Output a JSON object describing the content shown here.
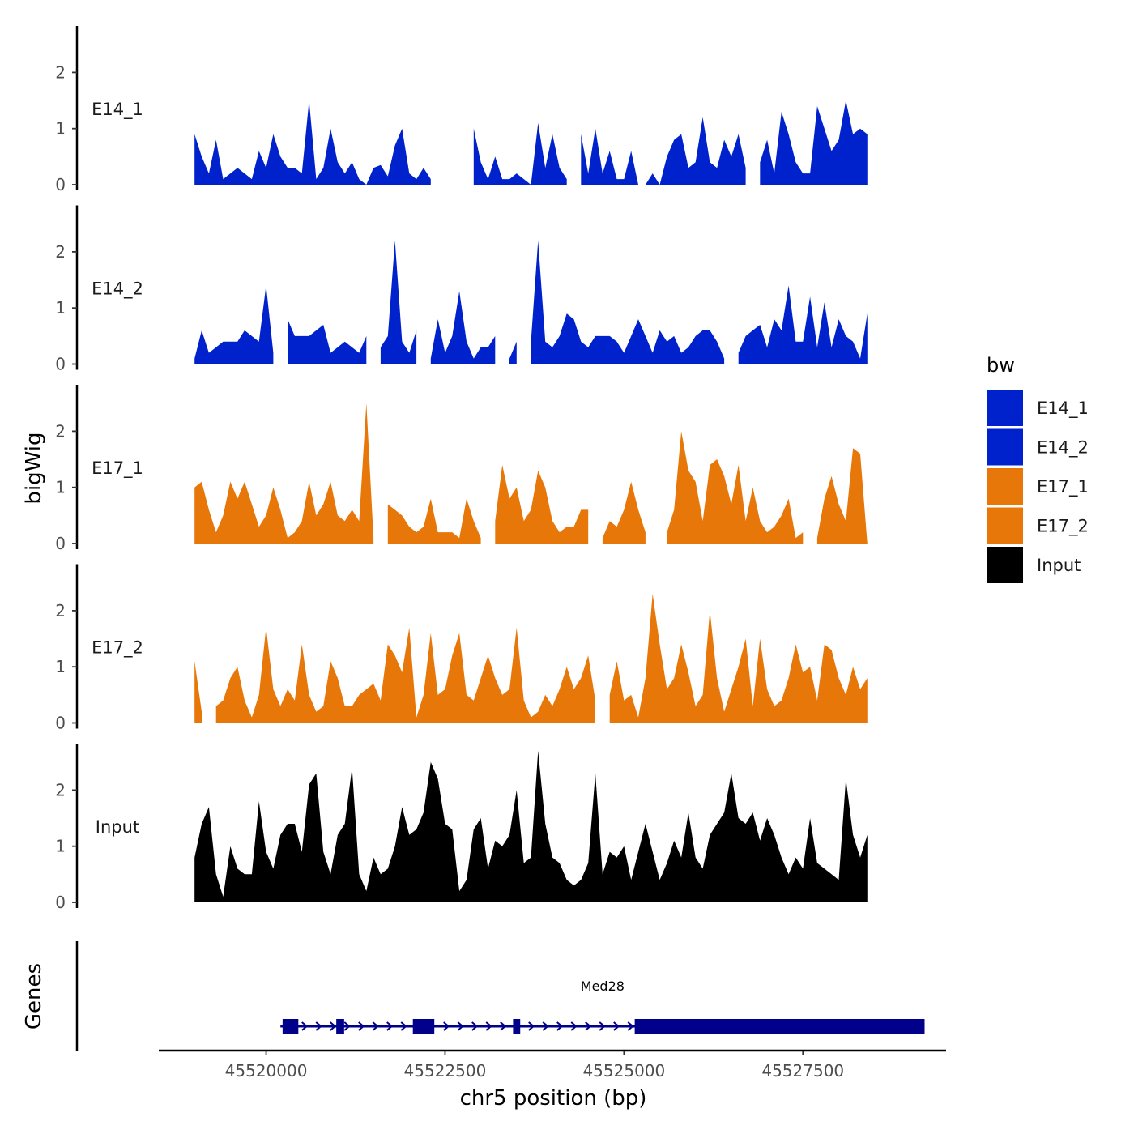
{
  "chart_data": {
    "type": "area",
    "title": "",
    "xlabel": "chr5 position (bp)",
    "ylabel": "bigWig",
    "genes_label": "Genes",
    "xlim": [
      45518500,
      45529500
    ],
    "ylim": [
      0,
      2.8
    ],
    "x_ticks": [
      45520000,
      45522500,
      45525000,
      45527500
    ],
    "x_tick_labels": [
      "45520000",
      "45522500",
      "45525000",
      "45527500"
    ],
    "y_ticks": [
      0,
      1,
      2
    ],
    "y_tick_labels": [
      "0",
      "1",
      "2"
    ],
    "legend": {
      "title": "bw",
      "position": "right",
      "entries": [
        {
          "label": "E14_1",
          "color": "#0022CC"
        },
        {
          "label": "E14_2",
          "color": "#0022CC"
        },
        {
          "label": "E17_1",
          "color": "#E8770A"
        },
        {
          "label": "E17_2",
          "color": "#E8770A"
        },
        {
          "label": "Input",
          "color": "#000000"
        }
      ]
    },
    "x_start": 45519000,
    "x_step": 100,
    "series": [
      {
        "name": "E14_1",
        "color": "#0022CC",
        "values": [
          0.9,
          0.5,
          0.2,
          0.8,
          0.1,
          0.2,
          0.3,
          0.2,
          0.1,
          0.6,
          0.3,
          0.9,
          0.5,
          0.3,
          0.3,
          0.2,
          1.5,
          0.1,
          0.3,
          1.0,
          0.4,
          0.2,
          0.4,
          0.1,
          0.0,
          0.3,
          0.35,
          0.15,
          0.7,
          1.0,
          0.2,
          0.1,
          0.3,
          0.1,
          null,
          null,
          0.4,
          null,
          null,
          1.0,
          0.4,
          0.1,
          0.5,
          0.1,
          0.1,
          0.2,
          0.1,
          0.0,
          1.1,
          0.3,
          0.9,
          0.3,
          0.1,
          null,
          0.9,
          0.2,
          1.0,
          0.2,
          0.6,
          0.1,
          0.1,
          0.6,
          0.0,
          0.0,
          0.2,
          0.0,
          0.5,
          0.8,
          0.9,
          0.3,
          0.4,
          1.2,
          0.4,
          0.3,
          0.8,
          0.5,
          0.9,
          0.3,
          null,
          0.4,
          0.8,
          0.2,
          1.3,
          0.9,
          0.4,
          0.2,
          0.2,
          1.4,
          1.0,
          0.6,
          0.8,
          1.5,
          0.9,
          1.0,
          0.9
        ]
      },
      {
        "name": "E14_2",
        "color": "#0022CC",
        "values": [
          0.1,
          0.6,
          0.2,
          0.3,
          0.4,
          0.4,
          0.4,
          0.6,
          0.5,
          0.4,
          1.4,
          0.2,
          null,
          0.8,
          0.5,
          0.5,
          0.5,
          0.6,
          0.7,
          0.2,
          0.3,
          0.4,
          0.3,
          0.2,
          0.5,
          null,
          0.3,
          0.5,
          2.2,
          0.4,
          0.2,
          0.6,
          null,
          0.1,
          0.8,
          0.2,
          0.5,
          1.3,
          0.4,
          0.1,
          0.3,
          0.3,
          0.5,
          null,
          0.1,
          0.4,
          null,
          0.4,
          2.2,
          0.4,
          0.3,
          0.5,
          0.9,
          0.8,
          0.4,
          0.3,
          0.5,
          0.5,
          0.5,
          0.4,
          0.2,
          0.5,
          0.8,
          0.5,
          0.2,
          0.6,
          0.4,
          0.5,
          0.2,
          0.3,
          0.5,
          0.6,
          0.6,
          0.4,
          0.1,
          null,
          0.2,
          0.5,
          0.6,
          0.7,
          0.3,
          0.8,
          0.6,
          1.4,
          0.4,
          0.4,
          1.2,
          0.3,
          1.1,
          0.3,
          0.8,
          0.5,
          0.4,
          0.1,
          0.9
        ]
      },
      {
        "name": "E17_1",
        "color": "#E8770A",
        "values": [
          1.0,
          1.1,
          0.6,
          0.2,
          0.5,
          1.1,
          0.8,
          1.1,
          0.7,
          0.3,
          0.5,
          1.0,
          0.6,
          0.1,
          0.2,
          0.4,
          1.1,
          0.5,
          0.7,
          1.1,
          0.5,
          0.4,
          0.6,
          0.4,
          2.5,
          0.1,
          null,
          0.7,
          0.6,
          0.5,
          0.3,
          0.2,
          0.3,
          0.8,
          0.2,
          0.2,
          0.2,
          0.1,
          0.8,
          0.4,
          0.1,
          null,
          0.4,
          1.4,
          0.8,
          1.0,
          0.4,
          0.6,
          1.3,
          1.0,
          0.4,
          0.2,
          0.3,
          0.3,
          0.6,
          0.6,
          null,
          0.1,
          0.4,
          0.3,
          0.6,
          1.1,
          0.6,
          0.2,
          null,
          null,
          0.2,
          0.6,
          2.0,
          1.3,
          1.1,
          0.4,
          1.4,
          1.5,
          1.2,
          0.7,
          1.4,
          0.4,
          1.0,
          0.4,
          0.2,
          0.3,
          0.5,
          0.8,
          0.1,
          0.2,
          null,
          0.1,
          0.8,
          1.2,
          0.7,
          0.4,
          1.7,
          1.6,
          0.0
        ]
      },
      {
        "name": "E17_2",
        "color": "#E8770A",
        "values": [
          1.1,
          0.2,
          null,
          0.3,
          0.4,
          0.8,
          1.0,
          0.4,
          0.1,
          0.5,
          1.7,
          0.6,
          0.3,
          0.6,
          0.4,
          1.4,
          0.5,
          0.2,
          0.3,
          1.1,
          0.8,
          0.3,
          0.3,
          0.5,
          0.6,
          0.7,
          0.4,
          1.4,
          1.2,
          0.9,
          1.7,
          0.1,
          0.5,
          1.6,
          0.5,
          0.6,
          1.2,
          1.6,
          0.5,
          0.4,
          0.8,
          1.2,
          0.8,
          0.5,
          0.6,
          1.7,
          0.4,
          0.1,
          0.2,
          0.5,
          0.3,
          0.6,
          1.0,
          0.6,
          0.8,
          1.2,
          0.4,
          null,
          0.5,
          1.1,
          0.4,
          0.5,
          0.1,
          0.8,
          2.3,
          1.4,
          0.6,
          0.8,
          1.4,
          0.9,
          0.3,
          0.5,
          2.0,
          0.8,
          0.2,
          0.6,
          1.0,
          1.5,
          0.3,
          1.5,
          0.6,
          0.3,
          0.4,
          0.8,
          1.4,
          0.9,
          1.0,
          0.4,
          1.4,
          1.3,
          0.8,
          0.5,
          1.0,
          0.6,
          0.8
        ]
      },
      {
        "name": "Input",
        "color": "#000000",
        "values": [
          0.8,
          1.4,
          1.7,
          0.5,
          0.1,
          1.0,
          0.6,
          0.5,
          0.5,
          1.8,
          0.9,
          0.6,
          1.2,
          1.4,
          1.4,
          0.9,
          2.1,
          2.3,
          0.9,
          0.5,
          1.2,
          1.4,
          2.4,
          0.5,
          0.2,
          0.8,
          0.5,
          0.6,
          1.0,
          1.7,
          1.2,
          1.3,
          1.6,
          2.5,
          2.2,
          1.4,
          1.3,
          0.2,
          0.4,
          1.3,
          1.5,
          0.6,
          1.1,
          1.0,
          1.2,
          2.0,
          0.7,
          0.8,
          2.7,
          1.4,
          0.8,
          0.7,
          0.4,
          0.3,
          0.4,
          0.7,
          2.3,
          0.5,
          0.9,
          0.8,
          1.0,
          0.4,
          0.9,
          1.4,
          0.9,
          0.4,
          0.7,
          1.1,
          0.8,
          1.6,
          0.8,
          0.6,
          1.2,
          1.4,
          1.6,
          2.3,
          1.5,
          1.4,
          1.6,
          1.1,
          1.5,
          1.2,
          0.8,
          0.5,
          0.8,
          0.6,
          1.5,
          0.7,
          0.6,
          0.5,
          0.4,
          2.2,
          1.2,
          0.8,
          1.2
        ]
      }
    ],
    "gene": {
      "name": "Med28",
      "strand": "+",
      "start": 45520200,
      "end": 45529200,
      "exons": [
        [
          45520230,
          45520450
        ],
        [
          45520980,
          45521090
        ],
        [
          45522050,
          45522350
        ],
        [
          45523450,
          45523550
        ],
        [
          45525150,
          45525550
        ],
        [
          45525550,
          45529200
        ]
      ]
    }
  }
}
